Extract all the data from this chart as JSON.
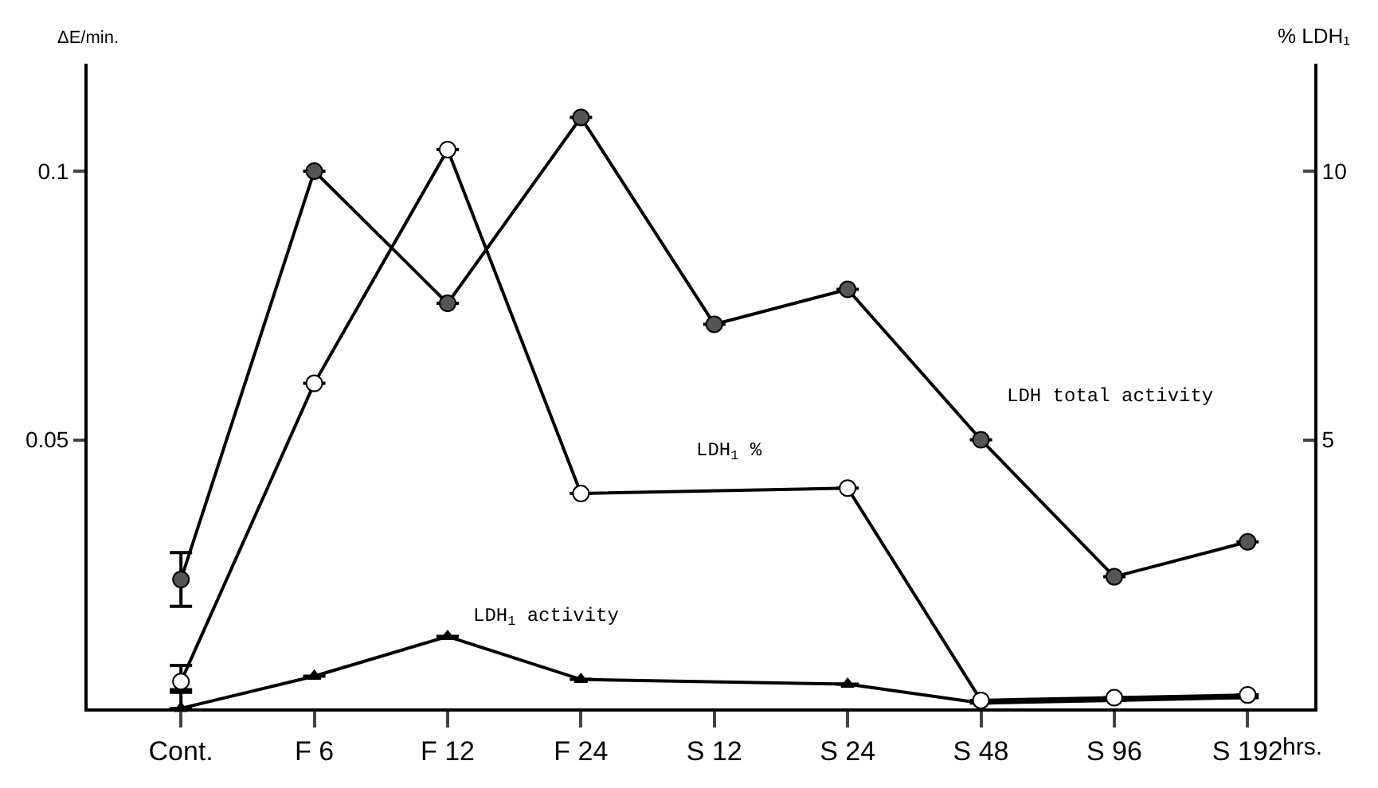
{
  "chart_data": {
    "type": "line",
    "categories": [
      "Cont.",
      "F 6",
      "F 12",
      "F 24",
      "S 12",
      "S 24",
      "S 48",
      "S 96",
      "S 192"
    ],
    "xlabel": "hrs.",
    "ylabel": "ΔE/min.",
    "y2label": "% LDH₁",
    "ylim": [
      0,
      0.12
    ],
    "yticks": [
      0.05,
      0.1
    ],
    "y2lim": [
      0,
      12
    ],
    "y2ticks": [
      5,
      10
    ],
    "legend": false,
    "series": [
      {
        "name": "LDH total activity",
        "color": "#555555",
        "marker": "circle",
        "values": [
          0.024,
          0.1,
          0.0754,
          0.11,
          0.0715,
          0.078,
          0.05,
          0.0245,
          0.031
        ],
        "errors": [
          0.005,
          null,
          null,
          null,
          null,
          null,
          null,
          null,
          null
        ]
      },
      {
        "name": "LDH$_{1}$ %",
        "color": "#ffffff",
        "marker": "circle",
        "axis": "y2",
        "values": [
          0.5,
          6.05,
          10.4,
          4.0,
          null,
          4.1,
          0.15,
          0.2,
          0.25
        ],
        "errors": [
          [
            0.35,
            0.8
          ],
          null,
          null,
          null,
          null,
          null,
          null,
          null,
          null
        ]
      },
      {
        "name": "LDH$_{1}$ activity",
        "color": "#000000",
        "marker": "triangle",
        "values": [
          0,
          0.006,
          0.0134,
          0.0054,
          null,
          0.0045,
          0.001,
          0.0015,
          0.002
        ],
        "errors": [
          [
            0,
            0.003
          ],
          null,
          null,
          null,
          null,
          null,
          null,
          null,
          null
        ]
      }
    ]
  }
}
